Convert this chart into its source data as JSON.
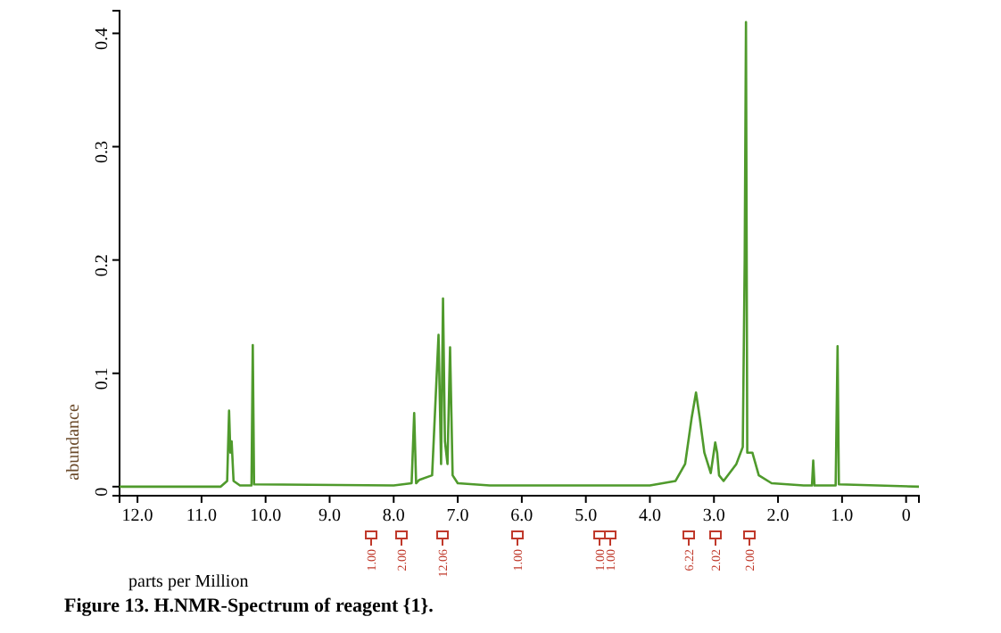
{
  "chart_data": {
    "type": "line",
    "title": "Figure 13. H.NMR-Spectrum of reagent {1}.",
    "xlabel": "parts per Million",
    "ylabel": "abundance",
    "xlim": [
      12.28,
      -0.2
    ],
    "ylim": [
      -0.008,
      0.42
    ],
    "xticks": [
      {
        "value": 12,
        "label": "12.0"
      },
      {
        "value": 11,
        "label": "11.0"
      },
      {
        "value": 10,
        "label": "10.0"
      },
      {
        "value": 9,
        "label": "9.0"
      },
      {
        "value": 8,
        "label": "8.0"
      },
      {
        "value": 7,
        "label": "7.0"
      },
      {
        "value": 6,
        "label": "6.0"
      },
      {
        "value": 5,
        "label": "5.0"
      },
      {
        "value": 4,
        "label": "4.0"
      },
      {
        "value": 3,
        "label": "3.0"
      },
      {
        "value": 2,
        "label": "2.0"
      },
      {
        "value": 1,
        "label": "1.0"
      },
      0
    ],
    "yticks": [
      0,
      0.1,
      0.2,
      0.3,
      0.4
    ],
    "grid": false,
    "marker": "none",
    "line_style": "solid",
    "series": [
      {
        "color": "#4f9a2c",
        "x": [
          12.28,
          10.7,
          10.6,
          10.57,
          10.55,
          10.53,
          10.5,
          10.4,
          10.22,
          10.2,
          10.18,
          8.0,
          7.72,
          7.68,
          7.65,
          7.6,
          7.4,
          7.3,
          7.26,
          7.23,
          7.2,
          7.16,
          7.12,
          7.08,
          7.0,
          6.5,
          4.0,
          3.6,
          3.45,
          3.35,
          3.28,
          3.22,
          3.15,
          3.05,
          2.98,
          2.95,
          2.92,
          2.85,
          2.65,
          2.55,
          2.52,
          2.5,
          2.48,
          2.4,
          2.3,
          2.1,
          1.6,
          1.47,
          1.45,
          1.43,
          1.1,
          1.07,
          1.05,
          -0.2
        ],
        "values": [
          0,
          0,
          0.005,
          0.067,
          0.03,
          0.04,
          0.005,
          0.001,
          0.001,
          0.125,
          0.002,
          0.001,
          0.003,
          0.065,
          0.003,
          0.006,
          0.01,
          0.134,
          0.02,
          0.166,
          0.04,
          0.02,
          0.123,
          0.01,
          0.003,
          0.001,
          0.001,
          0.005,
          0.02,
          0.06,
          0.083,
          0.06,
          0.03,
          0.012,
          0.039,
          0.03,
          0.01,
          0.005,
          0.02,
          0.035,
          0.2,
          0.41,
          0.03,
          0.03,
          0.01,
          0.003,
          0.001,
          0.001,
          0.023,
          0.001,
          0.001,
          0.124,
          0.002,
          0
        ]
      }
    ],
    "annotations": [
      "1.00",
      "2.00",
      "12.06",
      "1.00",
      "1.00",
      "1.00",
      "6.22",
      "2.02",
      "2.00"
    ]
  }
}
